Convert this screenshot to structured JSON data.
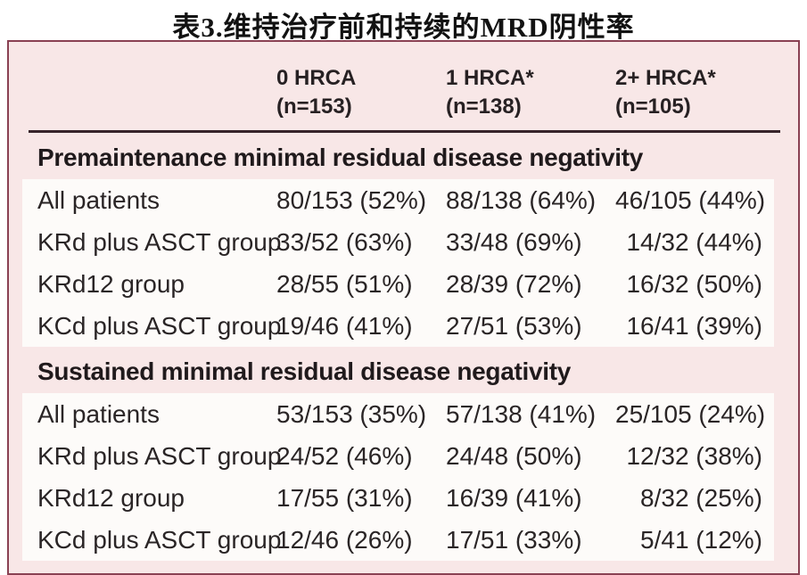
{
  "title": "表3.维持治疗前和持续的MRD阴性率",
  "table": {
    "columns": [
      {
        "line1": "0 HRCA",
        "line2": "(n=153)"
      },
      {
        "line1": "1 HRCA*",
        "line2": "(n=138)"
      },
      {
        "line1": "2+ HRCA*",
        "line2": "(n=105)"
      }
    ],
    "sections": [
      {
        "header": "Premaintenance minimal residual disease negativity",
        "rows": [
          {
            "label": "All patients",
            "values": [
              "80/153 (52%)",
              "88/138 (64%)",
              "46/105 (44%)"
            ]
          },
          {
            "label": "KRd plus ASCT group",
            "values": [
              "33/52 (63%)",
              "33/48 (69%)",
              "14/32 (44%)"
            ]
          },
          {
            "label": "KRd12 group",
            "values": [
              "28/55 (51%)",
              "28/39 (72%)",
              "16/32 (50%)"
            ]
          },
          {
            "label": "KCd plus ASCT group",
            "values": [
              "19/46 (41%)",
              "27/51 (53%)",
              "16/41 (39%)"
            ]
          }
        ]
      },
      {
        "header": "Sustained minimal residual disease negativity",
        "rows": [
          {
            "label": "All patients",
            "values": [
              "53/153 (35%)",
              "57/138 (41%)",
              "25/105 (24%)"
            ]
          },
          {
            "label": "KRd plus ASCT group",
            "values": [
              "24/52 (46%)",
              "24/48 (50%)",
              "12/32 (38%)"
            ]
          },
          {
            "label": "KRd12 group",
            "values": [
              "17/55 (31%)",
              "16/39 (41%)",
              "8/32 (25%)"
            ]
          },
          {
            "label": "KCd plus ASCT group",
            "values": [
              "12/46 (26%)",
              "17/51 (33%)",
              "5/41 (12%)"
            ]
          }
        ]
      }
    ]
  },
  "colors": {
    "page_background": "#ffffff",
    "table_background": "#f8e7e7",
    "row_block_background": "#fdfbf9",
    "frame_border": "#8a4153",
    "header_rule": "#38242a",
    "text": "#2a2526"
  }
}
